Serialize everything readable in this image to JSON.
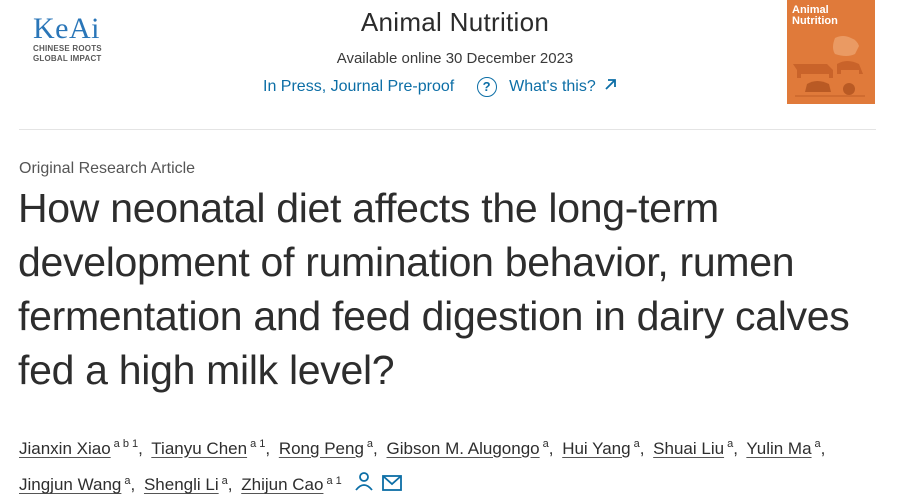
{
  "publisher": {
    "logo_text": "KeAi",
    "tagline_line1": "CHINESE ROOTS",
    "tagline_line2": "GLOBAL IMPACT"
  },
  "journal": {
    "title": "Animal Nutrition",
    "available_online": "Available online 30 December 2023",
    "status_link": "In Press, Journal Pre-proof",
    "whats_this_link": "What's this?",
    "cover_title_line1": "Animal",
    "cover_title_line2": "Nutrition",
    "cover_color": "#e07a3a"
  },
  "article": {
    "type": "Original Research Article",
    "title": "How neonatal diet affects the long-term development of rumination behavior, rumen fermentation and feed digestion in dairy calves fed a high milk level?"
  },
  "authors": [
    {
      "name": "Jianxin Xiao",
      "sup": "a b 1",
      "sep": ","
    },
    {
      "name": "Tianyu Chen",
      "sup": "a 1",
      "sep": ","
    },
    {
      "name": "Rong Peng",
      "sup": "a",
      "sep": ","
    },
    {
      "name": "Gibson M. Alugongo",
      "sup": "a",
      "sep": ","
    },
    {
      "name": "Hui Yang",
      "sup": "a",
      "sep": ","
    },
    {
      "name": "Shuai Liu",
      "sup": "a",
      "sep": ","
    },
    {
      "name": "Yulin Ma",
      "sup": "a",
      "sep": ","
    },
    {
      "name": "Jingjun Wang",
      "sup": "a",
      "sep": ","
    },
    {
      "name": "Shengli Li",
      "sup": "a",
      "sep": ","
    },
    {
      "name": "Zhijun Cao",
      "sup": "a 1",
      "sep": ""
    }
  ],
  "icons": {
    "help": "question-circle-icon",
    "external": "arrow-up-right-icon",
    "person": "person-icon",
    "mail": "envelope-icon"
  },
  "colors": {
    "link": "#0c6ea6",
    "logo_blue": "#2a76b8",
    "logo_red": "#e0312b"
  }
}
